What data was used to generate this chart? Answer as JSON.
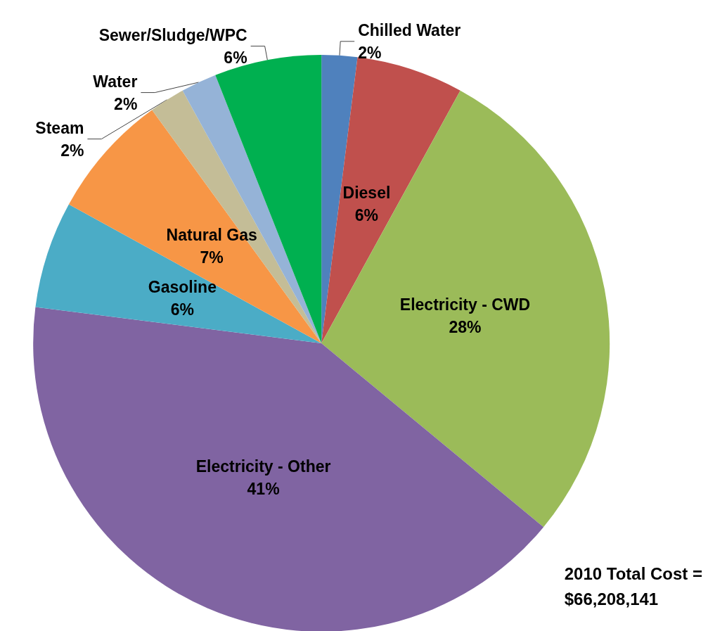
{
  "chart_data": {
    "type": "pie",
    "categories": [
      "Chilled Water",
      "Diesel",
      "Electricity - CWD",
      "Electricity - Other",
      "Gasoline",
      "Natural Gas",
      "Steam",
      "Water",
      "Sewer/Sludge/WPC"
    ],
    "values": [
      2,
      6,
      28,
      41,
      6,
      7,
      2,
      2,
      6
    ],
    "colors": [
      "#4f81bd",
      "#c0504d",
      "#9bbb59",
      "#8064a2",
      "#4bacc6",
      "#f79646",
      "#c4bd97",
      "#95b3d7",
      "#00b050"
    ],
    "value_labels": [
      "2%",
      "6%",
      "28%",
      "41%",
      "6%",
      "7%",
      "2%",
      "2%",
      "6%"
    ],
    "legend": false,
    "annotations": [
      "2010 Total Cost =\n$66,208,141"
    ]
  }
}
